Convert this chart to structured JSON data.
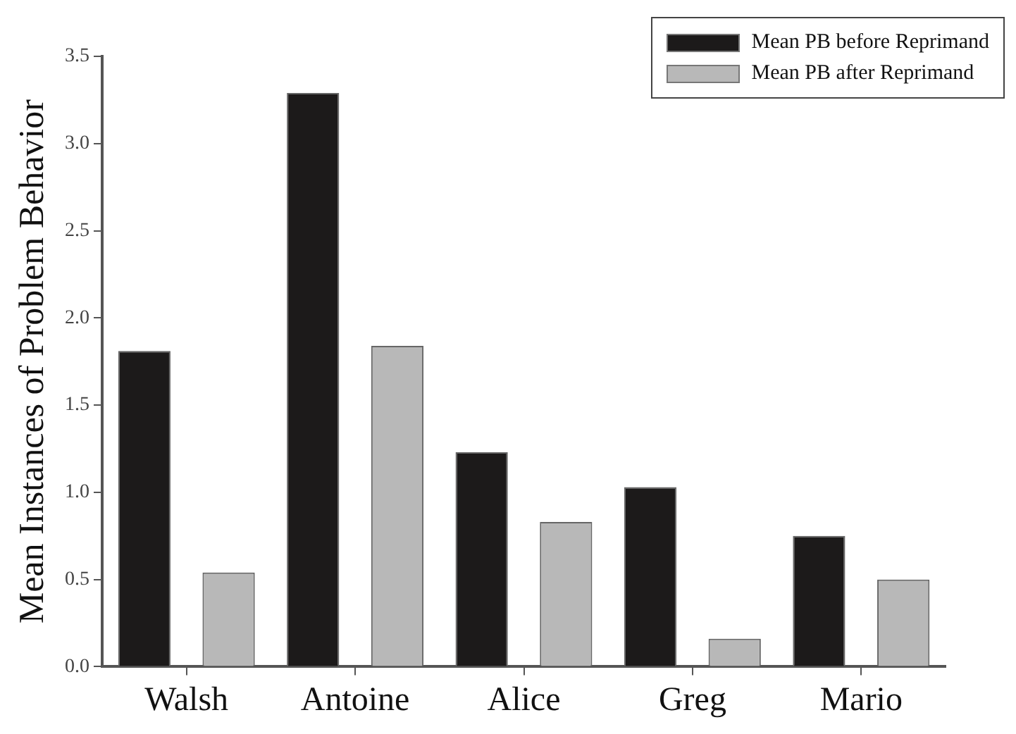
{
  "chart_data": {
    "type": "bar",
    "ylabel": "Mean Instances of Problem Behavior",
    "categories": [
      "Walsh",
      "Antoine",
      "Alice",
      "Greg",
      "Mario"
    ],
    "series": [
      {
        "name": "Mean PB before Reprimand",
        "color": "#1c1a1a",
        "values": [
          1.81,
          3.29,
          1.23,
          1.03,
          0.75
        ]
      },
      {
        "name": "Mean PB after Reprimand",
        "color": "#b8b8b8",
        "values": [
          0.54,
          1.84,
          0.83,
          0.16,
          0.5
        ]
      }
    ],
    "ylim": [
      0,
      3.5
    ],
    "yticks": [
      {
        "value": 0,
        "label": "0.0"
      },
      {
        "value": 0.5,
        "label": "0.5"
      },
      {
        "value": 1,
        "label": "1.0"
      },
      {
        "value": 1.5,
        "label": "1.5"
      },
      {
        "value": 2,
        "label": "2.0"
      },
      {
        "value": 2.5,
        "label": "2.5"
      },
      {
        "value": 3,
        "label": "3.0"
      },
      {
        "value": 3.5,
        "label": "3.5"
      }
    ],
    "grid": false,
    "legend": "top right"
  }
}
